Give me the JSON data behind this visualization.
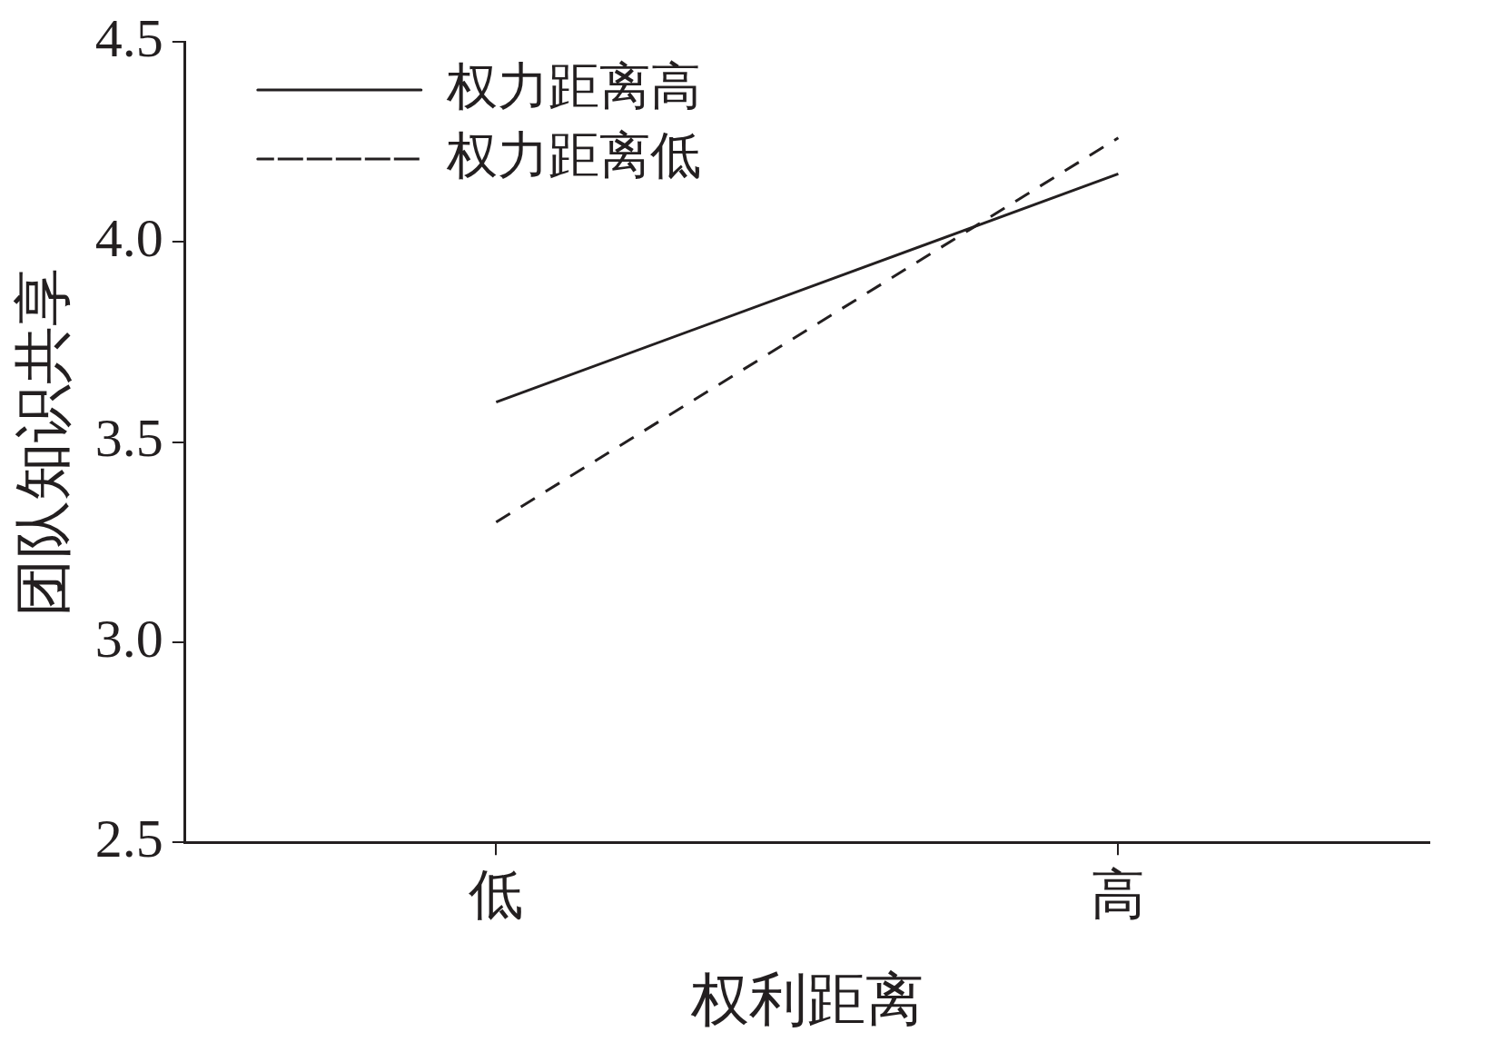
{
  "chart_data": {
    "type": "line",
    "xlabel": "权利距离",
    "ylabel": "团队知识共享",
    "categories": [
      "低",
      "高"
    ],
    "ylim": [
      2.5,
      4.5
    ],
    "yticks": [
      {
        "value": 2.5,
        "label": "2.5"
      },
      {
        "value": 3,
        "label": "3.0"
      },
      {
        "value": 3.5,
        "label": "3.5"
      },
      {
        "value": 4,
        "label": "4.0"
      },
      {
        "value": 4.5,
        "label": "4.5"
      }
    ],
    "series": [
      {
        "name": "权力距离高",
        "color": "#231f20",
        "line_style": "solid",
        "values": [
          3.6,
          4.17
        ]
      },
      {
        "name": "权力距离低",
        "color": "#231f20",
        "line_style": "dashed",
        "values": [
          3.3,
          4.26
        ]
      }
    ],
    "grid": false,
    "legend": "top left",
    "marker": "none"
  }
}
